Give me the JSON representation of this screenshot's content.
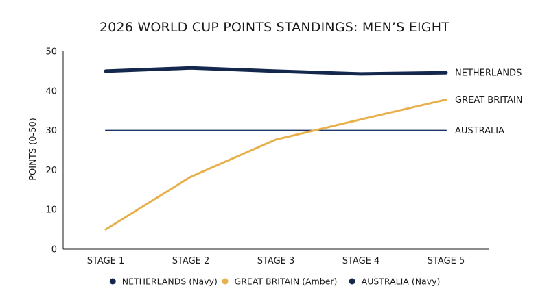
{
  "chart_data": {
    "type": "line",
    "title": "2026 WORLD CUP POINTS STANDINGS: MEN’S EIGHT",
    "xlabel": "",
    "ylabel": "POINTS (0-50)",
    "categories": [
      "STAGE 1",
      "STAGE 2",
      "STAGE 3",
      "STAGE 4",
      "STAGE 5"
    ],
    "ylim": [
      0,
      50
    ],
    "yticks": [
      "0",
      "10",
      "20",
      "30",
      "40",
      "50"
    ],
    "grid": false,
    "legend_position": "bottom",
    "series": [
      {
        "name": "NETHERLANDS",
        "end_label": "NETHERLANDS",
        "legend_label": "NETHERLANDS (Navy)",
        "color": "#14284e",
        "values": [
          45,
          45.8,
          45,
          44.3,
          44.6
        ]
      },
      {
        "name": "GREAT BRITAIN",
        "end_label": "GREAT BRITAIN",
        "legend_label": "GREAT BRITAIN (Amber)",
        "color": "#e8b04b",
        "values": [
          5,
          18.3,
          27.7,
          32.8,
          37.8
        ]
      },
      {
        "name": "AUSTRALIA",
        "end_label": "AUSTRALIA",
        "legend_label": "AUSTRALIA (Navy)",
        "color": "#1b3566",
        "values": [
          30,
          30,
          30,
          30,
          30
        ]
      }
    ]
  }
}
